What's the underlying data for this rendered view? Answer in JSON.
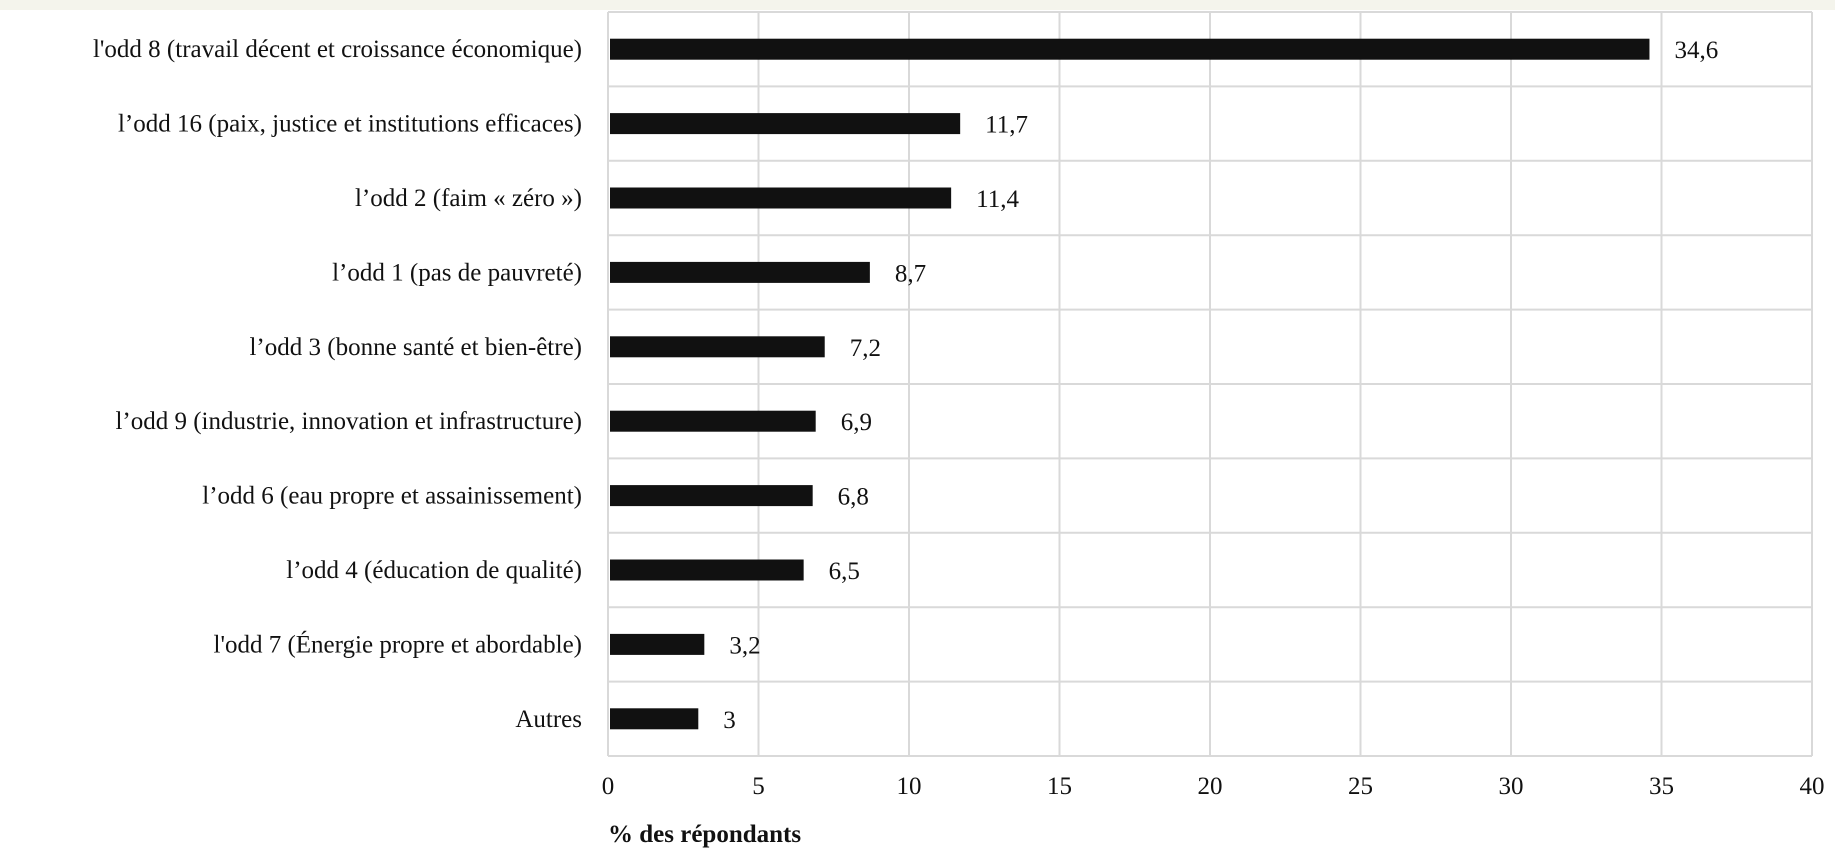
{
  "chart_data": {
    "type": "bar",
    "orientation": "horizontal",
    "categories": [
      "l'odd 8 (travail décent et croissance économique)",
      "l’odd 16 (paix, justice et institutions efficaces)",
      "l’odd 2 (faim « zéro »)",
      "l’odd 1 (pas de pauvreté)",
      "l’odd 3 (bonne santé et bien-être)",
      "l’odd 9 (industrie, innovation et infrastructure)",
      "l’odd 6 (eau propre et assainissement)",
      "l’odd 4 (éducation de qualité)",
      "l'odd 7 (Énergie propre et abordable)",
      "Autres"
    ],
    "values": [
      34.6,
      11.7,
      11.4,
      8.7,
      7.2,
      6.9,
      6.8,
      6.5,
      3.2,
      3
    ],
    "value_labels": [
      "34,6",
      "11,7",
      "11,4",
      "8,7",
      "7,2",
      "6,9",
      "6,8",
      "6,5",
      "3,2",
      "3"
    ],
    "xlabel": "% des répondants",
    "xlim": [
      0,
      40
    ],
    "xticks": [
      "0",
      "5",
      "10",
      "15",
      "20",
      "25",
      "30",
      "35",
      "40"
    ],
    "grid": true,
    "legend": "none",
    "bar_color": "#111111",
    "grid_color": "#d9d9d9"
  }
}
